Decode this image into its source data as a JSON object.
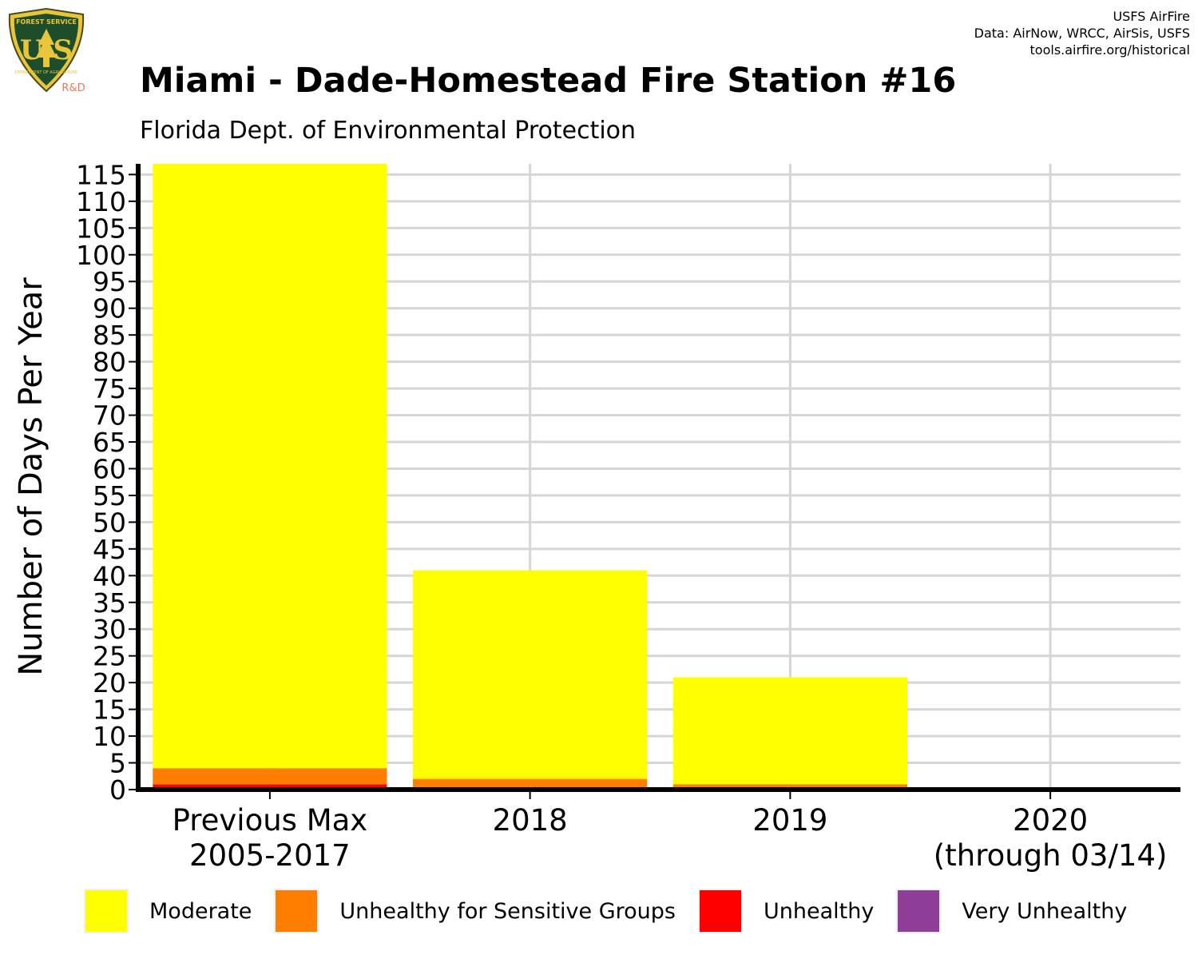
{
  "header": {
    "logo": {
      "top_text": "FOREST SERVICE",
      "letters": "U S",
      "bottom_text": "DEPARTMENT OF AGRICULTURE",
      "tag": "R&D",
      "icon": "usfs-shield-logo-icon"
    },
    "credits": [
      "USFS AirFire",
      "Data: AirNow, WRCC, AirSis, USFS",
      "tools.airfire.org/historical"
    ]
  },
  "chart_data": {
    "type": "bar",
    "stacked": true,
    "title": "Miami - Dade-Homestead Fire Station #16",
    "subtitle": "Florida Dept. of Environmental Protection",
    "ylabel": "Number of Days Per Year",
    "xlabel": "",
    "ylim": [
      0,
      117
    ],
    "yticks": [
      0,
      5,
      10,
      15,
      20,
      25,
      30,
      35,
      40,
      45,
      50,
      55,
      60,
      65,
      70,
      75,
      80,
      85,
      90,
      95,
      100,
      105,
      110,
      115
    ],
    "grid": true,
    "categories": [
      [
        "Previous Max",
        "2005-2017"
      ],
      [
        "2018"
      ],
      [
        "2019"
      ],
      [
        "2020",
        "(through 03/14)"
      ]
    ],
    "series": [
      {
        "name": "Very Unhealthy",
        "color": "#8f3f97",
        "values": [
          0,
          0,
          0,
          0
        ]
      },
      {
        "name": "Unhealthy",
        "color": "#ff0000",
        "values": [
          1,
          0,
          0,
          0
        ]
      },
      {
        "name": "Unhealthy for Sensitive Groups",
        "color": "#ff7e00",
        "values": [
          3,
          2,
          1,
          0
        ]
      },
      {
        "name": "Moderate",
        "color": "#ffff00",
        "values": [
          113,
          39,
          20,
          0
        ]
      }
    ],
    "legend": {
      "position": "bottom",
      "order": [
        "Moderate",
        "Unhealthy for Sensitive Groups",
        "Unhealthy",
        "Very Unhealthy"
      ]
    }
  }
}
